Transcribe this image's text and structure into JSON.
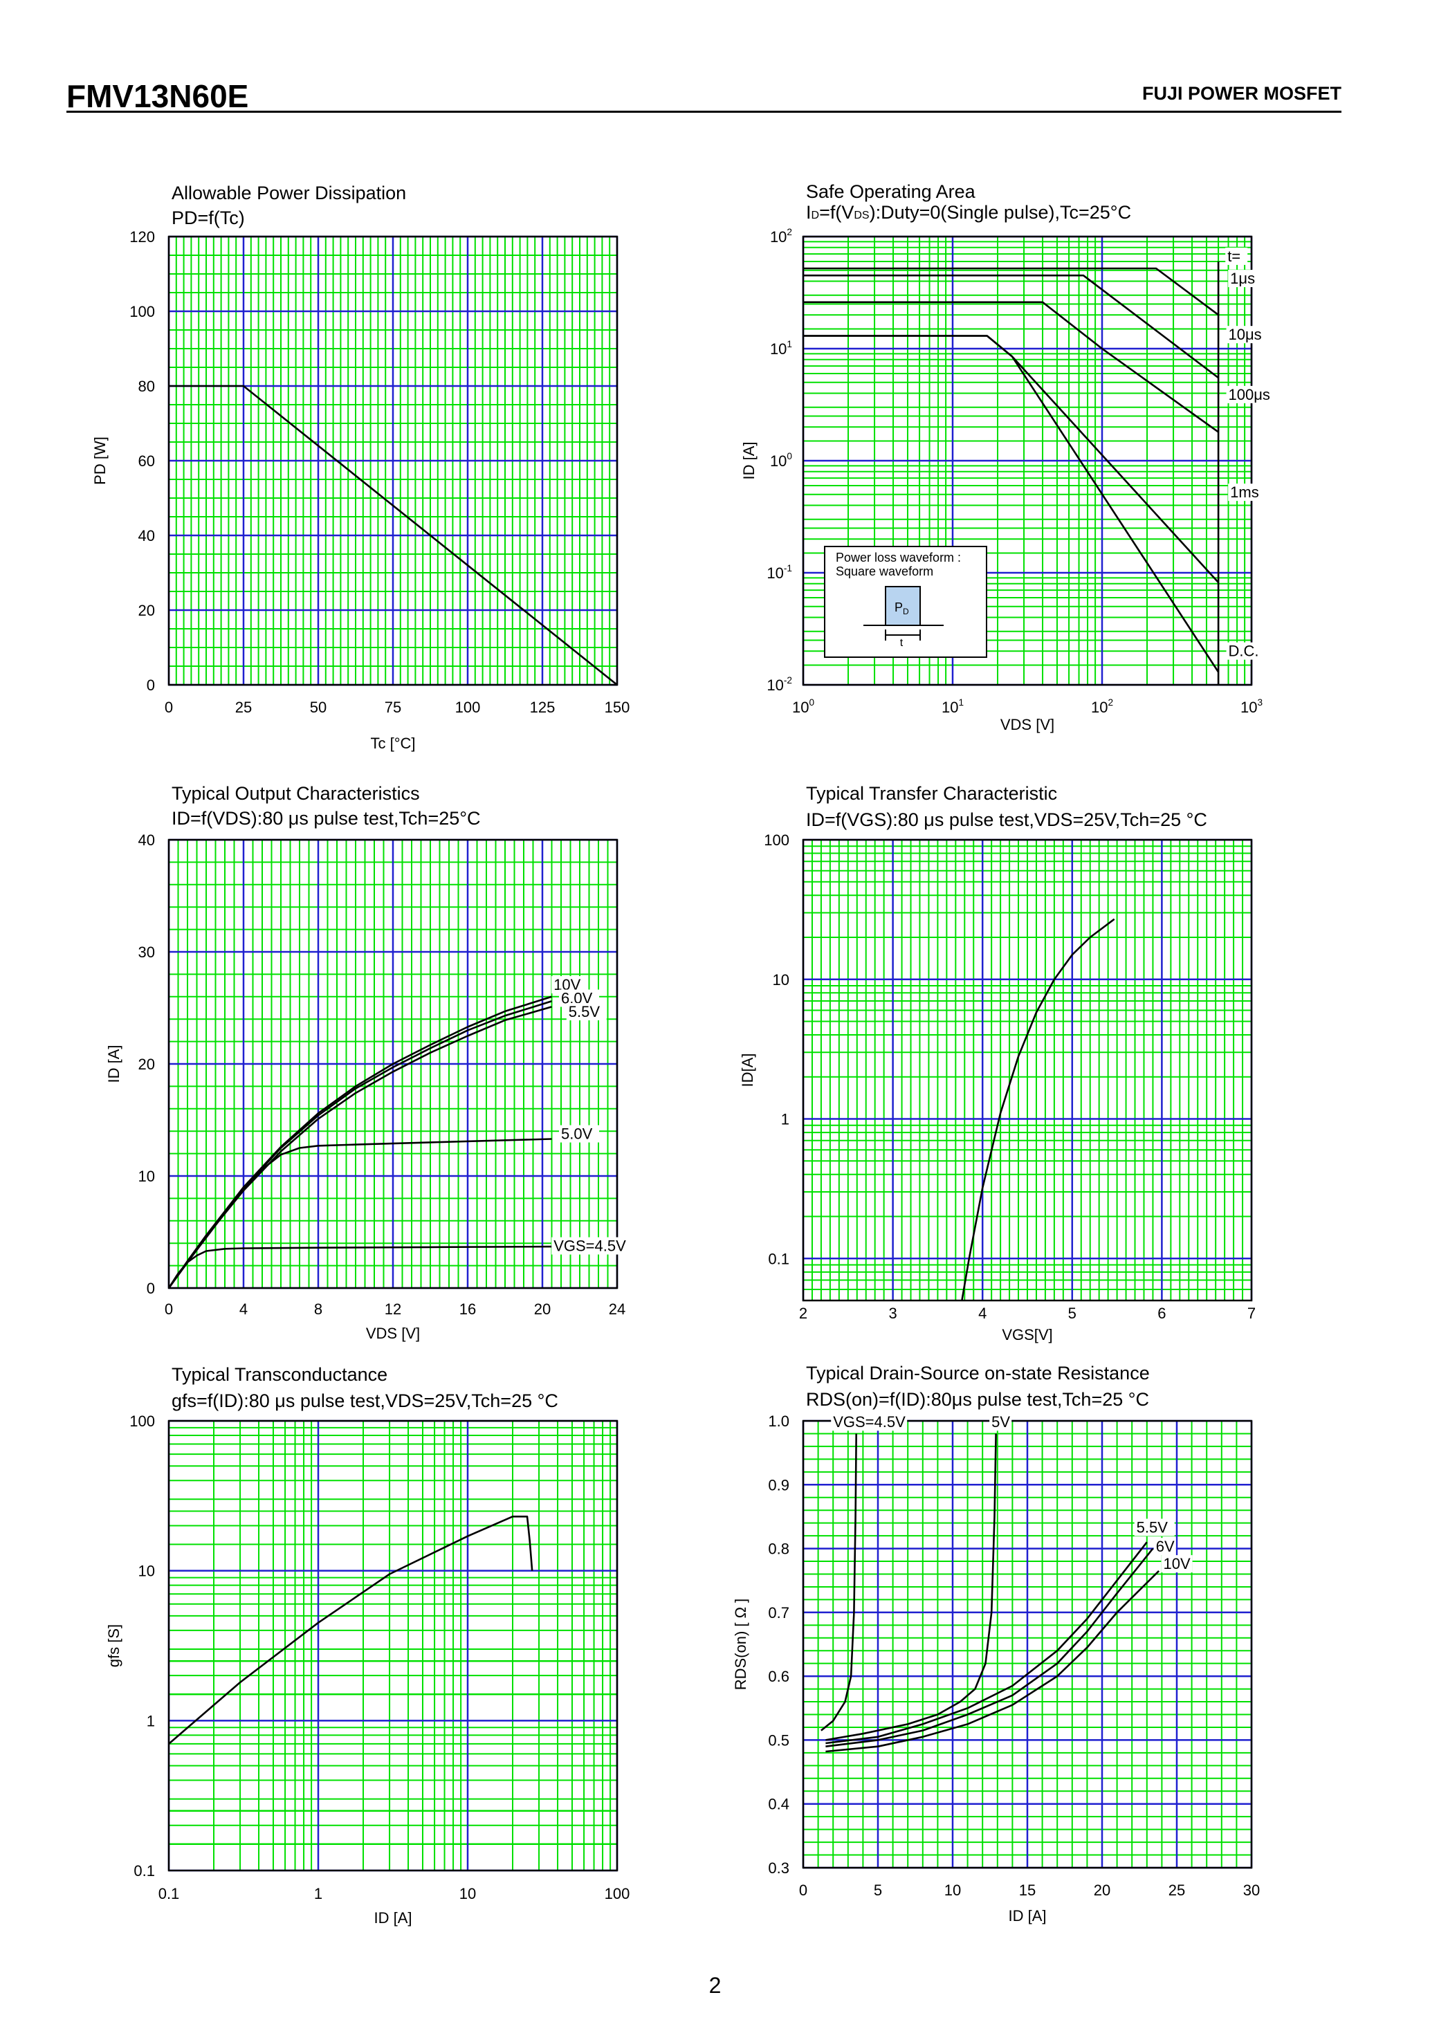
{
  "header": {
    "part_number": "FMV13N60E",
    "brand": "FUJI POWER MOSFET"
  },
  "footer": {
    "page_number": "2"
  },
  "colors": {
    "minor_grid": "#00e000",
    "major_grid": "#2020d0",
    "curve": "#000000"
  },
  "chart_data": [
    {
      "id": "pd",
      "type": "line",
      "title": "Allowable Power Dissipation",
      "subtitle": "PD=f(Tc)",
      "xlabel": "Tc [°C]",
      "ylabel": "PD [W]",
      "xlim": [
        0,
        150
      ],
      "ylim": [
        0,
        120
      ],
      "x_ticks": [
        0,
        25,
        50,
        75,
        100,
        125,
        150
      ],
      "y_ticks": [
        0,
        20,
        40,
        60,
        80,
        100,
        120
      ],
      "series": [
        {
          "x": [
            0,
            25,
            150
          ],
          "y": [
            80,
            80,
            0
          ]
        }
      ]
    },
    {
      "id": "soa",
      "type": "line",
      "title": "Safe Operating Area",
      "subtitle_parts": [
        "I",
        "D",
        "=f(V",
        "DS",
        "):Duty=0(Single pulse),Tc=25°C"
      ],
      "xlabel": "VDS [V]",
      "ylabel": "ID [A]",
      "xscale": "log",
      "yscale": "log",
      "xlim": [
        1,
        1000
      ],
      "ylim": [
        0.01,
        100
      ],
      "x_ticks": [
        1,
        10,
        100,
        1000
      ],
      "y_ticks": [
        0.01,
        0.1,
        1,
        10,
        100
      ],
      "x_tick_labels": [
        {
          "base": "10",
          "exp": "0"
        },
        {
          "base": "10",
          "exp": "1"
        },
        {
          "base": "10",
          "exp": "2"
        },
        {
          "base": "10",
          "exp": "3"
        }
      ],
      "y_tick_labels": [
        {
          "base": "10",
          "exp": "-2"
        },
        {
          "base": "10",
          "exp": "-1"
        },
        {
          "base": "10",
          "exp": "0"
        },
        {
          "base": "10",
          "exp": "1"
        },
        {
          "base": "10",
          "exp": "2"
        }
      ],
      "series": [
        {
          "name": "1μs",
          "x": [
            1,
            230,
            600
          ],
          "y": [
            52,
            52,
            20
          ]
        },
        {
          "name": "10μs",
          "x": [
            1,
            75,
            600
          ],
          "y": [
            45,
            45,
            5.5
          ]
        },
        {
          "name": "100μs",
          "x": [
            1,
            40,
            100,
            600
          ],
          "y": [
            26,
            26,
            10,
            1.8
          ]
        },
        {
          "name": "1ms",
          "x": [
            1,
            17,
            25,
            600
          ],
          "y": [
            13,
            13,
            8.5,
            0.082
          ]
        },
        {
          "name": "D.C.",
          "x": [
            1,
            17,
            25,
            600
          ],
          "y": [
            13,
            13,
            8.5,
            0.013
          ]
        },
        {
          "x": [
            600,
            600
          ],
          "y": [
            0.01,
            60
          ]
        }
      ],
      "annotations": [
        {
          "text": "t=",
          "x": 690,
          "y": 60
        },
        {
          "text": "1μs",
          "x": 720,
          "y": 38
        },
        {
          "text": "10μs",
          "x": 700,
          "y": 12
        },
        {
          "text": "100μs",
          "x": 700,
          "y": 3.5
        },
        {
          "text": "1ms",
          "x": 720,
          "y": 0.47
        },
        {
          "text": "D.C.",
          "x": 700,
          "y": 0.018
        }
      ],
      "inset": {
        "line1": "Power loss waveform :",
        "line2": "Square waveform",
        "pulse_label": "P",
        "pulse_sub": "D",
        "width_label": "t"
      }
    },
    {
      "id": "output",
      "type": "line",
      "title": "Typical Output Characteristics",
      "subtitle": "ID=f(VDS):80 μs pulse test,Tch=25°C",
      "xlabel": "VDS [V]",
      "ylabel": "ID [A]",
      "xlim": [
        0,
        24
      ],
      "ylim": [
        0,
        40
      ],
      "x_ticks": [
        0,
        4,
        8,
        12,
        16,
        20,
        24
      ],
      "y_ticks": [
        0,
        10,
        20,
        30,
        40
      ],
      "series": [
        {
          "name": "10V",
          "x": [
            0,
            1,
            2,
            4,
            6,
            8,
            10,
            12,
            14,
            16,
            18,
            20.5
          ],
          "y": [
            0,
            2.4,
            4.7,
            9,
            12.6,
            15.6,
            18,
            20,
            21.7,
            23.3,
            24.7,
            26
          ]
        },
        {
          "name": "6.0V",
          "x": [
            0,
            1,
            2,
            4,
            6,
            8,
            10,
            12,
            14,
            16,
            18,
            20.5
          ],
          "y": [
            0,
            2.4,
            4.7,
            8.9,
            12.5,
            15.4,
            17.8,
            19.7,
            21.4,
            23,
            24.3,
            25.6
          ]
        },
        {
          "name": "5.5V",
          "x": [
            0,
            1,
            2,
            4,
            6,
            8,
            10,
            12,
            14,
            16,
            18,
            20.5
          ],
          "y": [
            0,
            2.3,
            4.6,
            8.7,
            12.2,
            15.1,
            17.4,
            19.3,
            21,
            22.5,
            23.9,
            25.1
          ]
        },
        {
          "name": "5.0V",
          "x": [
            0,
            1,
            2,
            3,
            4,
            5,
            6,
            7,
            8,
            10,
            14,
            20.5
          ],
          "y": [
            0,
            2.3,
            4.5,
            6.7,
            8.8,
            10.6,
            11.9,
            12.5,
            12.7,
            12.8,
            13,
            13.3
          ]
        },
        {
          "name": "VGS=4.5V",
          "x": [
            0,
            0.5,
            1,
            1.5,
            2,
            3,
            4,
            8,
            14,
            20.5
          ],
          "y": [
            0,
            1.3,
            2.3,
            2.9,
            3.3,
            3.5,
            3.55,
            3.6,
            3.65,
            3.7
          ]
        }
      ],
      "labels": [
        {
          "text": "10V",
          "x": 20.6,
          "y": 26.6
        },
        {
          "text": "6.0V",
          "x": 21,
          "y": 25.4
        },
        {
          "text": "5.5V",
          "x": 21.4,
          "y": 24.2
        },
        {
          "text": "5.0V",
          "x": 21,
          "y": 13.3
        },
        {
          "text": "VGS=4.5V",
          "x": 20.6,
          "y": 3.3
        }
      ]
    },
    {
      "id": "transfer",
      "type": "line",
      "title": "Typical Transfer Characteristic",
      "subtitle": "ID=f(VGS):80 μs pulse test,VDS=25V,Tch=25 °C",
      "xlabel": "VGS[V]",
      "ylabel": "ID[A]",
      "yscale": "log",
      "xlim": [
        2,
        7
      ],
      "ylim": [
        0.05,
        100
      ],
      "x_ticks": [
        2,
        3,
        4,
        5,
        6,
        7
      ],
      "y_ticks": [
        0.1,
        1,
        10,
        100
      ],
      "series": [
        {
          "x": [
            3.77,
            3.85,
            4.0,
            4.2,
            4.4,
            4.6,
            4.8,
            5.0,
            5.2,
            5.47
          ],
          "y": [
            0.05,
            0.1,
            0.32,
            1.1,
            2.8,
            5.8,
            10,
            15,
            20,
            27
          ]
        }
      ]
    },
    {
      "id": "transconductance",
      "type": "line",
      "title": "Typical Transconductance",
      "subtitle": "gfs=f(ID):80 μs pulse test,VDS=25V,Tch=25 °C",
      "xlabel": "ID [A]",
      "ylabel": "gfs [S]",
      "xscale": "log",
      "yscale": "log",
      "xlim": [
        0.1,
        100
      ],
      "ylim": [
        0.1,
        100
      ],
      "x_ticks": [
        0.1,
        1,
        10,
        100
      ],
      "y_ticks": [
        0.1,
        1,
        10,
        100
      ],
      "series": [
        {
          "x": [
            0.1,
            0.3,
            1,
            3,
            10,
            20,
            25,
            26,
            27
          ],
          "y": [
            0.7,
            1.8,
            4.5,
            9.5,
            17,
            23,
            23,
            16,
            10
          ]
        }
      ]
    },
    {
      "id": "rdson",
      "type": "line",
      "title": "Typical Drain-Source on-state Resistance",
      "subtitle": "RDS(on)=f(ID):80μs pulse test,Tch=25 °C",
      "xlabel": "ID [A]",
      "ylabel": "RDS(on) [ Ω ]",
      "xlim": [
        0,
        30
      ],
      "ylim": [
        0.3,
        1.0
      ],
      "x_ticks": [
        0,
        5,
        10,
        15,
        20,
        25,
        30
      ],
      "y_ticks": [
        0.3,
        0.4,
        0.5,
        0.6,
        0.7,
        0.8,
        0.9,
        1.0
      ],
      "series": [
        {
          "name": "VGS=4.5V",
          "x": [
            1.2,
            2.0,
            2.8,
            3.2,
            3.4,
            3.5,
            3.55
          ],
          "y": [
            0.515,
            0.53,
            0.56,
            0.6,
            0.7,
            0.85,
            0.98
          ]
        },
        {
          "name": "5V",
          "x": [
            1.5,
            4,
            7,
            9,
            10.5,
            11.5,
            12.2,
            12.6,
            12.8,
            12.9
          ],
          "y": [
            0.5,
            0.51,
            0.525,
            0.54,
            0.56,
            0.58,
            0.62,
            0.7,
            0.85,
            0.98
          ]
        },
        {
          "name": "5.5V",
          "x": [
            1.5,
            5,
            8,
            11,
            14,
            17,
            19,
            21,
            23
          ],
          "y": [
            0.495,
            0.505,
            0.525,
            0.55,
            0.585,
            0.64,
            0.69,
            0.75,
            0.81
          ]
        },
        {
          "name": "6V",
          "x": [
            1.5,
            5,
            8,
            11,
            14,
            17,
            19,
            21,
            23.4
          ],
          "y": [
            0.49,
            0.5,
            0.515,
            0.54,
            0.57,
            0.62,
            0.67,
            0.73,
            0.8
          ]
        },
        {
          "name": "10V",
          "x": [
            1.5,
            5,
            8,
            11,
            14,
            17,
            19,
            21,
            23.8
          ],
          "y": [
            0.482,
            0.49,
            0.505,
            0.525,
            0.555,
            0.6,
            0.645,
            0.7,
            0.765
          ]
        }
      ],
      "labels": [
        {
          "text": "VGS=4.5V",
          "x": 2,
          "y": 0.99
        },
        {
          "text": "5V",
          "x": 12.6,
          "y": 0.99
        },
        {
          "text": "5.5V",
          "x": 22.3,
          "y": 0.825
        },
        {
          "text": "6V",
          "x": 23.6,
          "y": 0.795
        },
        {
          "text": "10V",
          "x": 24.1,
          "y": 0.768
        }
      ]
    }
  ]
}
